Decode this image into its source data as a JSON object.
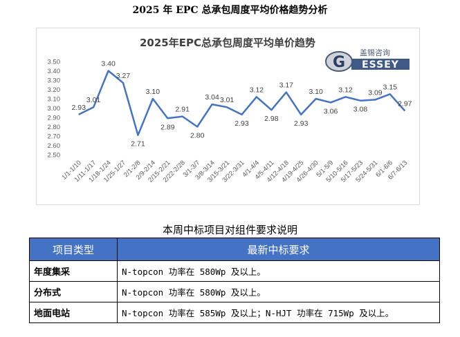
{
  "page": {
    "title": "2025 年 EPC 总承包周度平均价格趋势分析"
  },
  "logo": {
    "chinese_text": "盖锡咨询",
    "english_text": "ESSEY",
    "letter": "G"
  },
  "chart_data": {
    "type": "line",
    "title": "2025年EPC总承包周度平均单价趋势",
    "categories": [
      "1/1-1/10",
      "1/11-1/17",
      "1/18-1/24",
      "1/25-1/27",
      "2/1-2/8",
      "2/9-2/14",
      "2/15-2/21",
      "2/22-2/28",
      "3/1-3/7",
      "3/8-3/14",
      "3/15-3/21",
      "3/22-3/31",
      "4/1-4/4",
      "4/5-4/11",
      "4/12-4/18",
      "4/19-4/25",
      "4/26-4/30",
      "5/1-5/9",
      "5/10-5/16",
      "5/17-5/23",
      "5/24-5/31",
      "6/1-6/6",
      "6/7-6/13"
    ],
    "values": [
      2.93,
      3.01,
      3.4,
      3.27,
      2.71,
      3.1,
      2.89,
      2.91,
      2.8,
      3.04,
      3.01,
      2.93,
      3.12,
      2.98,
      3.17,
      2.93,
      3.1,
      3.06,
      3.12,
      3.08,
      3.09,
      3.15,
      2.97
    ],
    "data_labels": [
      "2.93",
      "3.01",
      "3.40",
      "3.27",
      "2.71",
      "3.10",
      "2.89",
      "2.91",
      "2.80",
      "3.04",
      "3.01",
      "2.93",
      "3.12",
      "2.98",
      "3.17",
      "2.93",
      "3.10",
      "3.06",
      "3.12",
      "3.08",
      "3.09",
      "3.15",
      "2.97"
    ],
    "yticks": [
      "3.50",
      "3.40",
      "3.30",
      "3.20",
      "3.10",
      "3.00",
      "2.90",
      "2.80",
      "2.70",
      "2.60",
      "2.50"
    ],
    "ylim": [
      2.5,
      3.5
    ],
    "line_color": "#4472c4",
    "grid": false,
    "legend": false
  },
  "table": {
    "title": "本周中标项目对组件要求说明",
    "headers": [
      "项目类型",
      "最新中标要求"
    ],
    "rows": [
      {
        "type": "年度集采",
        "requirement": "N-topcon 功率在 580Wp 及以上。"
      },
      {
        "type": "分布式",
        "requirement": "N-topcon 功率在 580Wp 及以上。"
      },
      {
        "type": "地面电站",
        "requirement": "N-topcon 功率在 585Wp 及以上；N-HJT 功率在 715Wp 及以上。"
      }
    ],
    "header_color": "#4472c4"
  }
}
